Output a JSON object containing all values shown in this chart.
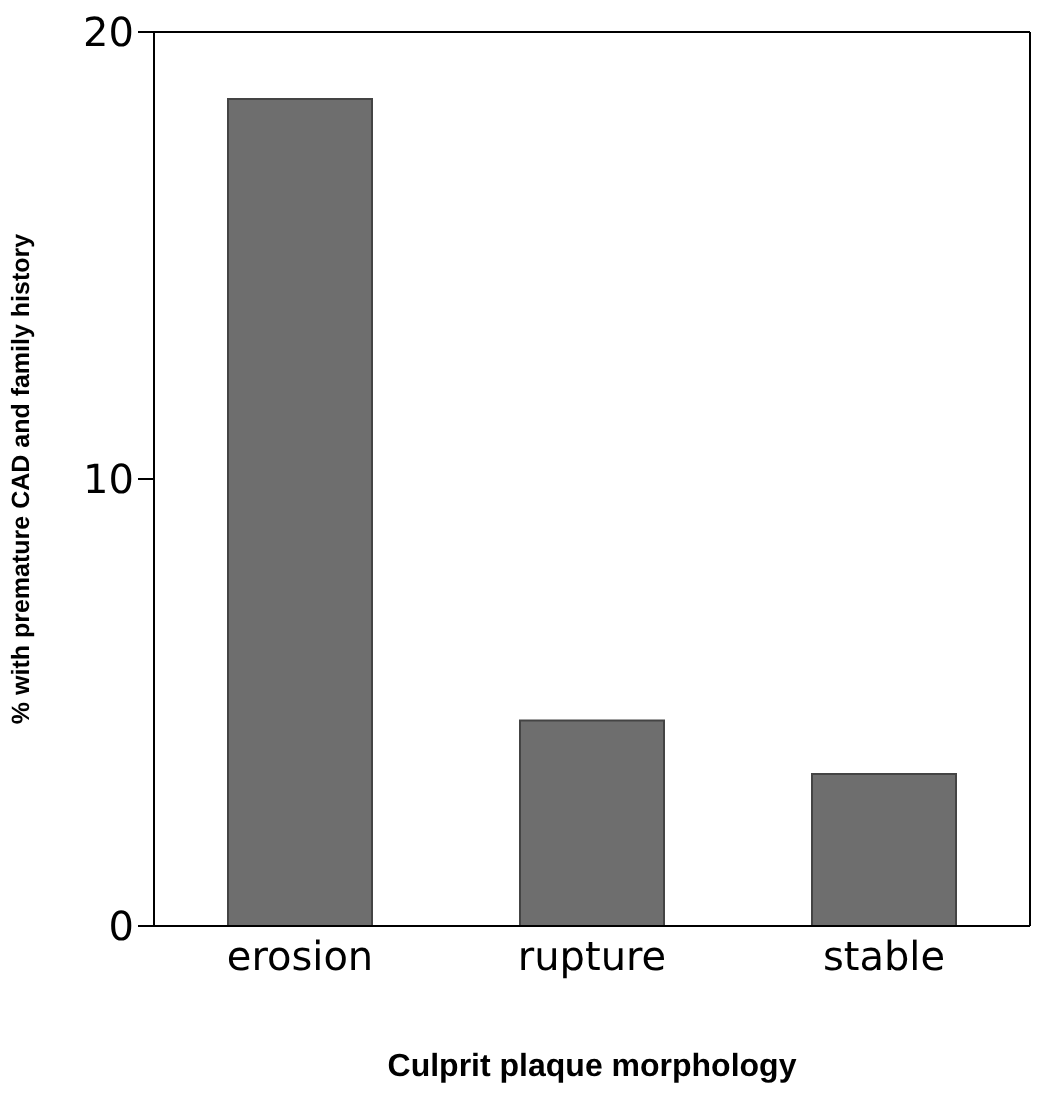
{
  "chart_data": {
    "type": "bar",
    "xlabel": "Culprit plaque morphology",
    "ylabel": "% with premature CAD and family history",
    "categories": [
      "erosion",
      "rupture",
      "stable"
    ],
    "values": [
      18.5,
      4.6,
      3.4
    ],
    "color": "#6e6e6e",
    "ylim": [
      0,
      20
    ],
    "yticks": [
      0,
      10,
      20
    ],
    "grid": false
  }
}
